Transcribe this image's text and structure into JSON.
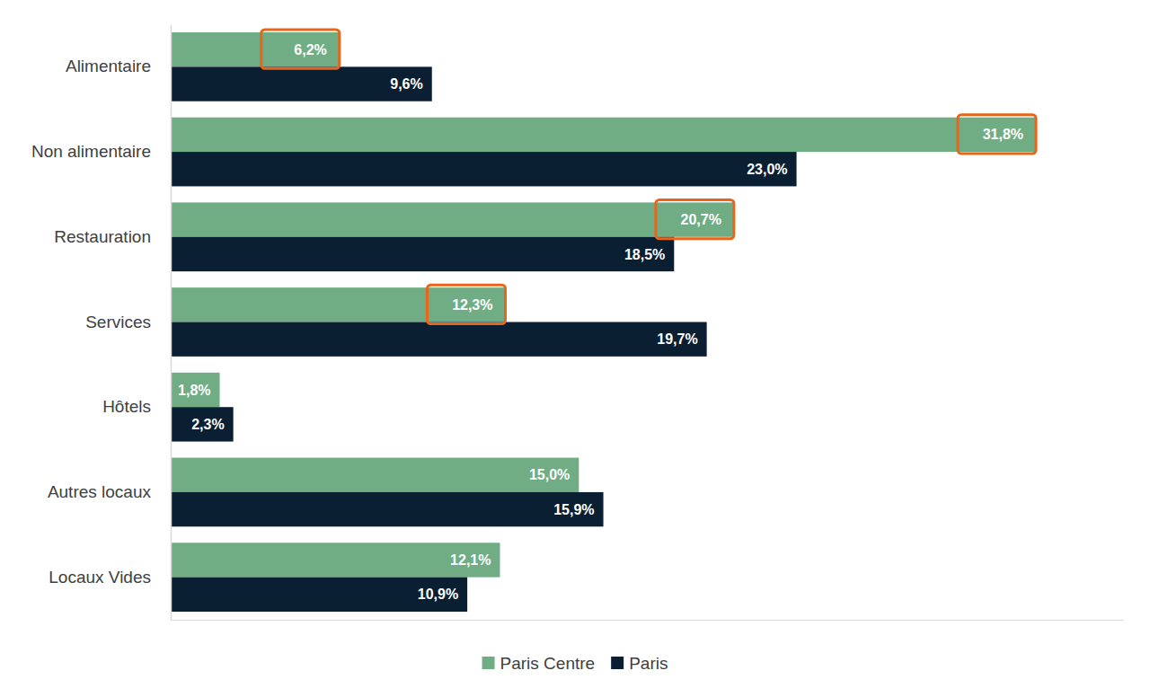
{
  "chart_data": {
    "type": "bar",
    "orientation": "horizontal",
    "categories": [
      "Alimentaire",
      "Non alimentaire",
      "Restauration",
      "Services",
      "Hôtels",
      "Autres locaux",
      "Locaux Vides"
    ],
    "series": [
      {
        "name": "Paris Centre",
        "color": "#70AD85",
        "values": [
          6.2,
          31.8,
          20.7,
          12.3,
          1.8,
          15.0,
          12.1
        ],
        "value_labels": [
          "6,2%",
          "31,8%",
          "20,7%",
          "12,3%",
          "1,8%",
          "15,0%",
          "12,1%"
        ]
      },
      {
        "name": "Paris",
        "color": "#0B1F33",
        "values": [
          9.6,
          23.0,
          18.5,
          19.7,
          2.3,
          15.9,
          10.9
        ],
        "value_labels": [
          "9,6%",
          "23,0%",
          "18,5%",
          "19,7%",
          "2,3%",
          "15,9%",
          "10,9%"
        ]
      }
    ],
    "xlim": [
      0,
      35
    ],
    "xticks": [],
    "data_labels": true,
    "legend": "bottom",
    "tick_labels": "y",
    "grid": false
  }
}
